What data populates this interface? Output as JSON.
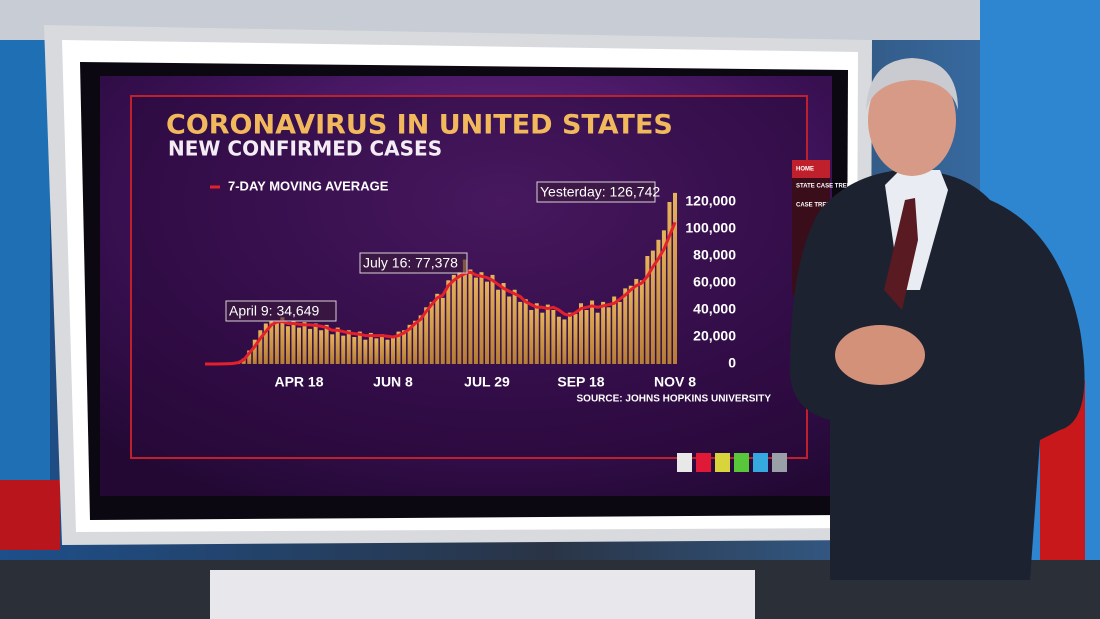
{
  "menu": [
    "HOME",
    "STATE CASE TREND",
    "CASE TREND"
  ],
  "chart_data": {
    "type": "bar",
    "title": "CORONAVIRUS IN UNITED STATES",
    "subtitle": "NEW CONFIRMED CASES",
    "source": "SOURCE: JOHNS HOPKINS UNIVERSITY",
    "annotations": [
      "April 9: 34,649",
      "July 16: 77,378",
      "Yesterday: 126,742"
    ],
    "categories": [
      null,
      null,
      null,
      null,
      null,
      null,
      null,
      null,
      null,
      null,
      null,
      null,
      null,
      null,
      null,
      null,
      null,
      "APR 18",
      null,
      null,
      null,
      null,
      null,
      null,
      null,
      null,
      null,
      null,
      null,
      null,
      null,
      null,
      null,
      null,
      "JUN 8",
      null,
      null,
      null,
      null,
      null,
      null,
      null,
      null,
      null,
      null,
      null,
      null,
      null,
      null,
      null,
      null,
      "JUL 29",
      null,
      null,
      null,
      null,
      null,
      null,
      null,
      null,
      null,
      null,
      null,
      null,
      null,
      null,
      null,
      null,
      "SEP 18",
      null,
      null,
      null,
      null,
      null,
      null,
      null,
      null,
      null,
      null,
      null,
      null,
      null,
      null,
      null,
      null,
      "NOV 8"
    ],
    "values": [
      0,
      0,
      0,
      100,
      300,
      500,
      1500,
      4000,
      10000,
      18000,
      25000,
      30000,
      32000,
      31000,
      34649,
      28000,
      32000,
      27000,
      31000,
      26000,
      30000,
      25000,
      29000,
      22000,
      27000,
      21000,
      25000,
      20000,
      24000,
      18000,
      23000,
      19000,
      22000,
      18000,
      21000,
      24000,
      25000,
      29000,
      32000,
      36000,
      42000,
      46000,
      52000,
      49000,
      62000,
      66000,
      68000,
      77378,
      70000,
      64000,
      68000,
      61000,
      66000,
      55000,
      60000,
      50000,
      55000,
      46000,
      48000,
      40000,
      45000,
      38000,
      44000,
      40000,
      35000,
      33000,
      38000,
      37000,
      45000,
      40000,
      47000,
      38000,
      46000,
      42000,
      50000,
      46000,
      56000,
      58000,
      63000,
      62000,
      80000,
      84000,
      92000,
      99000,
      120000,
      126742
    ],
    "color": "#d9a24e",
    "line": {
      "name": "7-DAY MOVING AVERAGE",
      "color": "#e3202c",
      "values": [
        0,
        0,
        0,
        100,
        200,
        400,
        1000,
        3000,
        8000,
        13000,
        19000,
        24000,
        29000,
        31000,
        31500,
        30000,
        30000,
        29500,
        29000,
        29000,
        28500,
        28000,
        27000,
        25000,
        25000,
        24000,
        23000,
        22500,
        22000,
        21000,
        21000,
        21000,
        21000,
        20500,
        20000,
        21000,
        23000,
        26000,
        30000,
        33000,
        39000,
        44000,
        49000,
        51000,
        58000,
        62000,
        65000,
        67000,
        68000,
        66000,
        65000,
        64000,
        62000,
        59000,
        56000,
        54000,
        52000,
        50000,
        46000,
        44000,
        42000,
        42000,
        41000,
        42000,
        40000,
        37000,
        36000,
        38000,
        41000,
        42000,
        43000,
        42000,
        43000,
        44000,
        45000,
        48000,
        51000,
        55000,
        58000,
        60000,
        65000,
        72000,
        78000,
        85000,
        95000,
        105000
      ]
    },
    "ylim": [
      0,
      130000
    ],
    "yticks": [
      0,
      {
        "value": 20000,
        "label": "20,000"
      },
      {
        "value": 40000,
        "label": "40,000"
      },
      {
        "value": 60000,
        "label": "60,000"
      },
      {
        "value": 80000,
        "label": "80,000"
      },
      {
        "value": 100000,
        "label": "100,000"
      },
      {
        "value": 120000,
        "label": "120,000"
      }
    ]
  }
}
